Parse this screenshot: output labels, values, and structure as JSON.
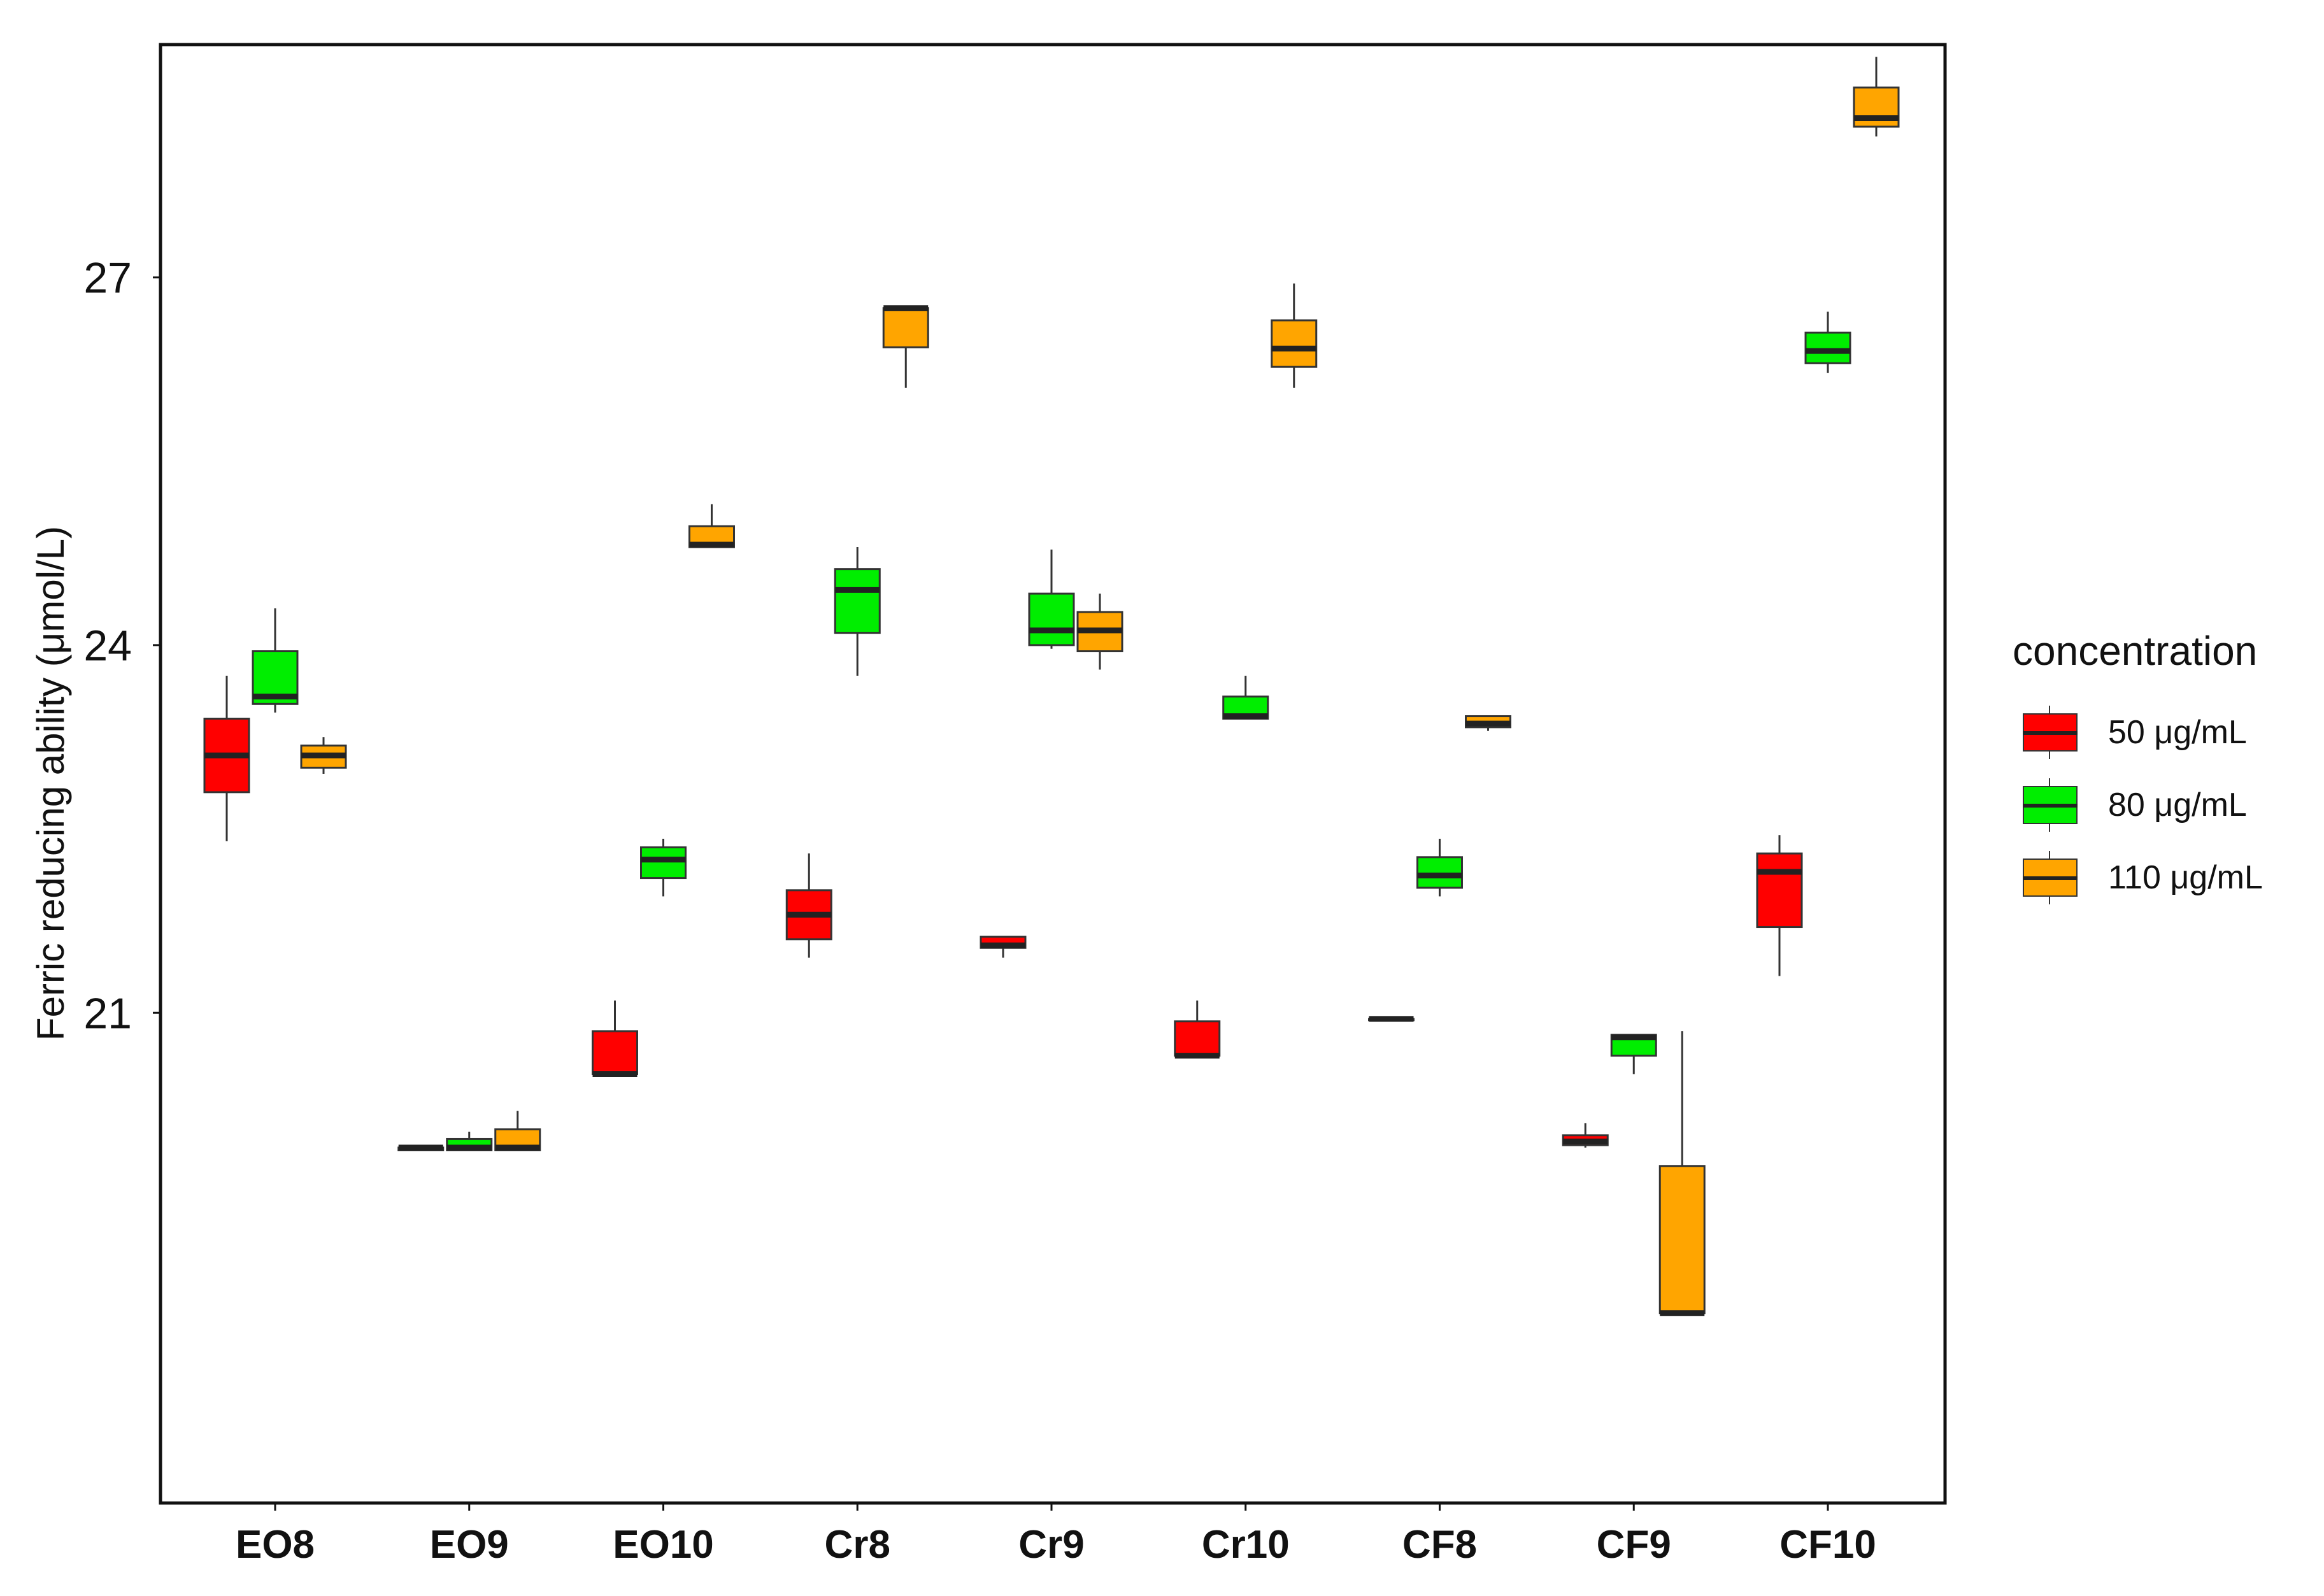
{
  "chart_data": {
    "type": "box",
    "title": "",
    "xlabel": "",
    "ylabel": "Ferric reducing ability (μmol/L)",
    "ylim": [
      17.0,
      28.9
    ],
    "yticks": [
      21,
      24,
      27
    ],
    "categories": [
      "EO8",
      "EO9",
      "EO10",
      "Cr8",
      "Cr9",
      "Cr10",
      "CF8",
      "CF9",
      "CF10"
    ],
    "legend": {
      "title": "concentration",
      "position": "right"
    },
    "grid": false,
    "series": [
      {
        "name": "50 μg/mL",
        "color": "#ff0000",
        "boxes": [
          {
            "min": 22.4,
            "q1": 22.8,
            "median": 23.1,
            "q3": 23.4,
            "max": 23.75
          },
          {
            "min": 19.88,
            "q1": 19.88,
            "median": 19.9,
            "q3": 19.9,
            "max": 19.9
          },
          {
            "min": 20.5,
            "q1": 20.5,
            "median": 20.5,
            "q3": 20.85,
            "max": 21.1
          },
          {
            "min": 21.45,
            "q1": 21.6,
            "median": 21.8,
            "q3": 22.0,
            "max": 22.3
          },
          {
            "min": 21.45,
            "q1": 21.53,
            "median": 21.55,
            "q3": 21.62,
            "max": 21.62
          },
          {
            "min": 20.65,
            "q1": 20.65,
            "median": 20.65,
            "q3": 20.93,
            "max": 21.1
          },
          {
            "min": 20.95,
            "q1": 20.95,
            "median": 20.95,
            "q3": 20.95,
            "max": 20.95
          },
          {
            "min": 19.9,
            "q1": 19.92,
            "median": 19.95,
            "q3": 20.0,
            "max": 20.1
          },
          {
            "min": 21.3,
            "q1": 21.7,
            "median": 22.15,
            "q3": 22.3,
            "max": 22.45
          }
        ]
      },
      {
        "name": "80 μg/mL",
        "color": "#00ee00",
        "boxes": [
          {
            "min": 23.45,
            "q1": 23.52,
            "median": 23.58,
            "q3": 23.95,
            "max": 24.3
          },
          {
            "min": 19.88,
            "q1": 19.88,
            "median": 19.9,
            "q3": 19.97,
            "max": 20.03
          },
          {
            "min": 21.95,
            "q1": 22.1,
            "median": 22.25,
            "q3": 22.35,
            "max": 22.42
          },
          {
            "min": 23.75,
            "q1": 24.1,
            "median": 24.45,
            "q3": 24.62,
            "max": 24.8
          },
          {
            "min": 23.97,
            "q1": 24.0,
            "median": 24.12,
            "q3": 24.42,
            "max": 24.78
          },
          {
            "min": 23.4,
            "q1": 23.4,
            "median": 23.42,
            "q3": 23.58,
            "max": 23.75
          },
          {
            "min": 21.95,
            "q1": 22.02,
            "median": 22.12,
            "q3": 22.27,
            "max": 22.42
          },
          {
            "min": 20.5,
            "q1": 20.65,
            "median": 20.8,
            "q3": 20.82,
            "max": 20.82
          },
          {
            "min": 26.22,
            "q1": 26.3,
            "median": 26.4,
            "q3": 26.55,
            "max": 26.72
          }
        ]
      },
      {
        "name": "110 μg/mL",
        "color": "#ffa500",
        "boxes": [
          {
            "min": 22.95,
            "q1": 23.0,
            "median": 23.1,
            "q3": 23.18,
            "max": 23.25
          },
          {
            "min": 19.88,
            "q1": 19.88,
            "median": 19.9,
            "q3": 20.05,
            "max": 20.2
          },
          {
            "min": 24.8,
            "q1": 24.8,
            "median": 24.82,
            "q3": 24.97,
            "max": 25.15
          },
          {
            "min": 26.1,
            "q1": 26.43,
            "median": 26.75,
            "q3": 26.75,
            "max": 26.75
          },
          {
            "min": 23.8,
            "q1": 23.95,
            "median": 24.12,
            "q3": 24.27,
            "max": 24.42
          },
          {
            "min": 26.1,
            "q1": 26.27,
            "median": 26.42,
            "q3": 26.65,
            "max": 26.95
          },
          {
            "min": 23.3,
            "q1": 23.33,
            "median": 23.36,
            "q3": 23.42,
            "max": 23.42
          },
          {
            "min": 18.55,
            "q1": 18.55,
            "median": 18.55,
            "q3": 19.75,
            "max": 20.85
          },
          {
            "min": 28.15,
            "q1": 28.23,
            "median": 28.3,
            "q3": 28.55,
            "max": 28.8
          }
        ]
      }
    ]
  }
}
